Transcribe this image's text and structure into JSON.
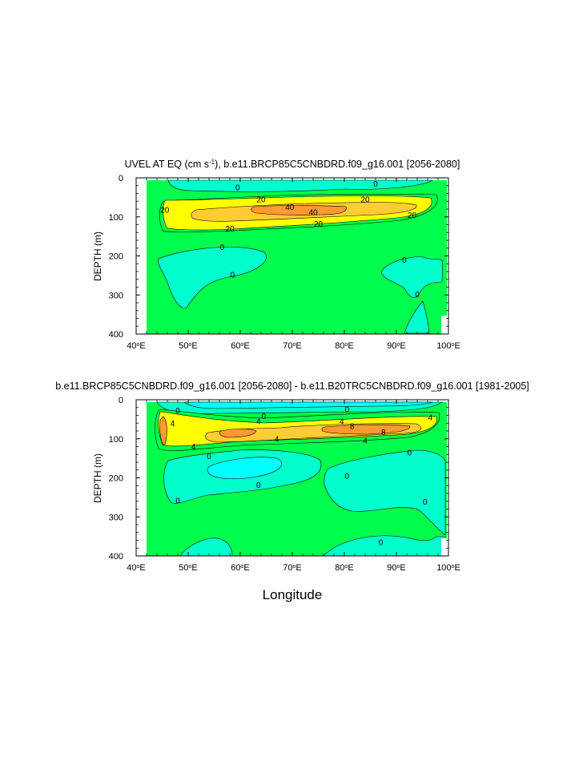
{
  "chart_data": [
    {
      "type": "contour",
      "title": "UVEL AT EQ (cm s",
      "title_sup": "-1",
      "title_rest": "), b.e11.BRCP85C5CNBDRD.f09_g16.001 [2056-2080]",
      "ylabel": "DEPTH (m)",
      "xlabel": "",
      "xlim": [
        40,
        100
      ],
      "ylim": [
        0,
        400
      ],
      "y_reversed": true,
      "xticks": [
        40,
        50,
        60,
        70,
        80,
        90,
        100
      ],
      "yticks": [
        0,
        100,
        200,
        300,
        400
      ],
      "xtick_suffix": "E",
      "contour_levels": [
        -20,
        0,
        20,
        40
      ],
      "fill_colors": {
        "below_0": "#00ffcc",
        "0_to_20": "#00ff4c",
        "20_to_40": "#ffff00",
        "above_40": "#ffcc33"
      },
      "contour_labels": [
        {
          "text": "0",
          "x": 59.5,
          "y": 25
        },
        {
          "text": "0",
          "x": 86,
          "y": 15
        },
        {
          "text": "20",
          "x": 64,
          "y": 55
        },
        {
          "text": "20",
          "x": 84,
          "y": 55
        },
        {
          "text": "20",
          "x": 45.5,
          "y": 82
        },
        {
          "text": "20",
          "x": 93,
          "y": 95
        },
        {
          "text": "40",
          "x": 69.5,
          "y": 75
        },
        {
          "text": "40",
          "x": 74,
          "y": 88
        },
        {
          "text": "20",
          "x": 58,
          "y": 130
        },
        {
          "text": "20",
          "x": 75,
          "y": 118
        },
        {
          "text": "0",
          "x": 56.5,
          "y": 177
        },
        {
          "text": "0",
          "x": 58.5,
          "y": 248
        },
        {
          "text": "0",
          "x": 91.5,
          "y": 210
        },
        {
          "text": "0",
          "x": 94,
          "y": 298
        }
      ]
    },
    {
      "type": "contour",
      "title": "b.e11.BRCP85C5CNBDRD.f09_g16.001 [2056-2080] - b.e11.B20TRC5CNBDRD.f09_g16.001 [1981-2005]",
      "ylabel": "DEPTH (m)",
      "xlabel": "Longitude",
      "xlim": [
        40,
        100
      ],
      "ylim": [
        0,
        400
      ],
      "y_reversed": true,
      "xticks": [
        40,
        50,
        60,
        70,
        80,
        90,
        100
      ],
      "yticks": [
        0,
        100,
        200,
        300,
        400
      ],
      "xtick_suffix": "E",
      "contour_levels": [
        -4,
        0,
        4,
        8
      ],
      "fill_colors": {
        "below_-4": "#00ffff",
        "-4_to_0": "#00ffcc",
        "0_to_4": "#00ff4c",
        "4_to_8": "#ffff00",
        "above_8": "#ff9933"
      },
      "contour_labels": [
        {
          "text": "0",
          "x": 48,
          "y": 28
        },
        {
          "text": "0",
          "x": 64.5,
          "y": 42
        },
        {
          "text": "0",
          "x": 80.5,
          "y": 25
        },
        {
          "text": "4",
          "x": 47,
          "y": 60
        },
        {
          "text": "4",
          "x": 63.5,
          "y": 55
        },
        {
          "text": "4",
          "x": 79.5,
          "y": 55
        },
        {
          "text": "8",
          "x": 81.5,
          "y": 68
        },
        {
          "text": "8",
          "x": 87.5,
          "y": 83
        },
        {
          "text": "4",
          "x": 96.5,
          "y": 45
        },
        {
          "text": "4",
          "x": 67,
          "y": 100
        },
        {
          "text": "4",
          "x": 51,
          "y": 120
        },
        {
          "text": "4",
          "x": 84,
          "y": 105
        },
        {
          "text": "0",
          "x": 54,
          "y": 145
        },
        {
          "text": "0",
          "x": 63.5,
          "y": 218
        },
        {
          "text": "0",
          "x": 48,
          "y": 258
        },
        {
          "text": "0",
          "x": 80.5,
          "y": 195
        },
        {
          "text": "0",
          "x": 92.5,
          "y": 135
        },
        {
          "text": "0",
          "x": 95.5,
          "y": 262
        },
        {
          "text": "0",
          "x": 87,
          "y": 365
        }
      ]
    }
  ]
}
